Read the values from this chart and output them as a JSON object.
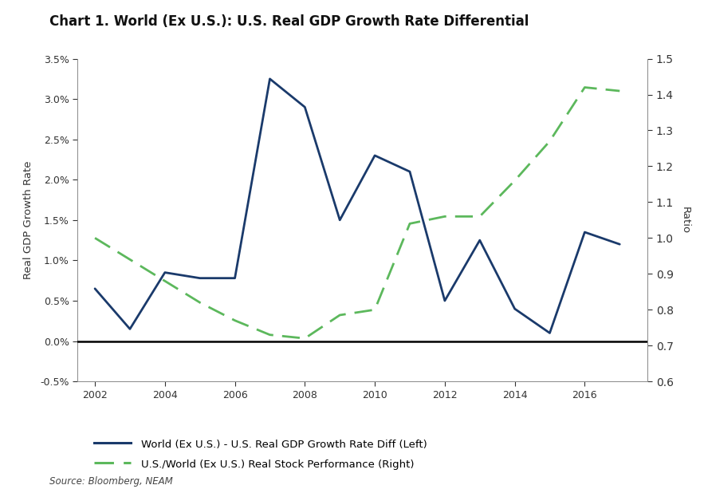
{
  "title": "Chart 1. World (Ex U.S.): U.S. Real GDP Growth Rate Differential",
  "ylabel_left": "Real GDP Growth Rate",
  "ylabel_right": "Ratio",
  "source": "Source: Bloomberg, NEAM",
  "background_color": "#ffffff",
  "blue_series": {
    "years": [
      2002,
      2003,
      2004,
      2005,
      2006,
      2007,
      2008,
      2009,
      2010,
      2011,
      2012,
      2013,
      2014,
      2015,
      2016,
      2017
    ],
    "values": [
      0.0065,
      0.0015,
      0.0085,
      0.0078,
      0.0078,
      0.0325,
      0.029,
      0.015,
      0.023,
      0.021,
      0.005,
      0.0125,
      0.004,
      0.001,
      0.0135,
      0.012
    ]
  },
  "green_series": {
    "years": [
      2002,
      2003,
      2004,
      2005,
      2006,
      2007,
      2008,
      2009,
      2010,
      2011,
      2012,
      2013,
      2014,
      2015,
      2016,
      2017
    ],
    "values": [
      1.0,
      0.94,
      0.88,
      0.82,
      0.77,
      0.73,
      0.72,
      0.785,
      0.8,
      1.04,
      1.06,
      1.06,
      1.16,
      1.27,
      1.42,
      1.41
    ]
  },
  "ylim_left": [
    -0.005,
    0.035
  ],
  "ylim_right": [
    0.6,
    1.5
  ],
  "yticks_left": [
    -0.005,
    0.0,
    0.005,
    0.01,
    0.015,
    0.02,
    0.025,
    0.03,
    0.035
  ],
  "ytick_labels_left": [
    "-0.5%",
    "0.0%",
    "0.5%",
    "1.0%",
    "1.5%",
    "2.0%",
    "2.5%",
    "3.0%",
    "3.5%"
  ],
  "yticks_right": [
    0.6,
    0.7,
    0.8,
    0.9,
    1.0,
    1.1,
    1.2,
    1.3,
    1.4,
    1.5
  ],
  "xticks": [
    2002,
    2004,
    2006,
    2008,
    2010,
    2012,
    2014,
    2016
  ],
  "blue_color": "#1a3a6b",
  "green_color": "#5cb85c",
  "legend_label_blue": "World (Ex U.S.) - U.S. Real GDP Growth Rate Diff (Left)",
  "legend_label_green": "U.S./World (Ex U.S.) Real Stock Performance (Right)",
  "title_fontsize": 12,
  "axis_label_fontsize": 9.5,
  "tick_fontsize": 9,
  "legend_fontsize": 9.5
}
